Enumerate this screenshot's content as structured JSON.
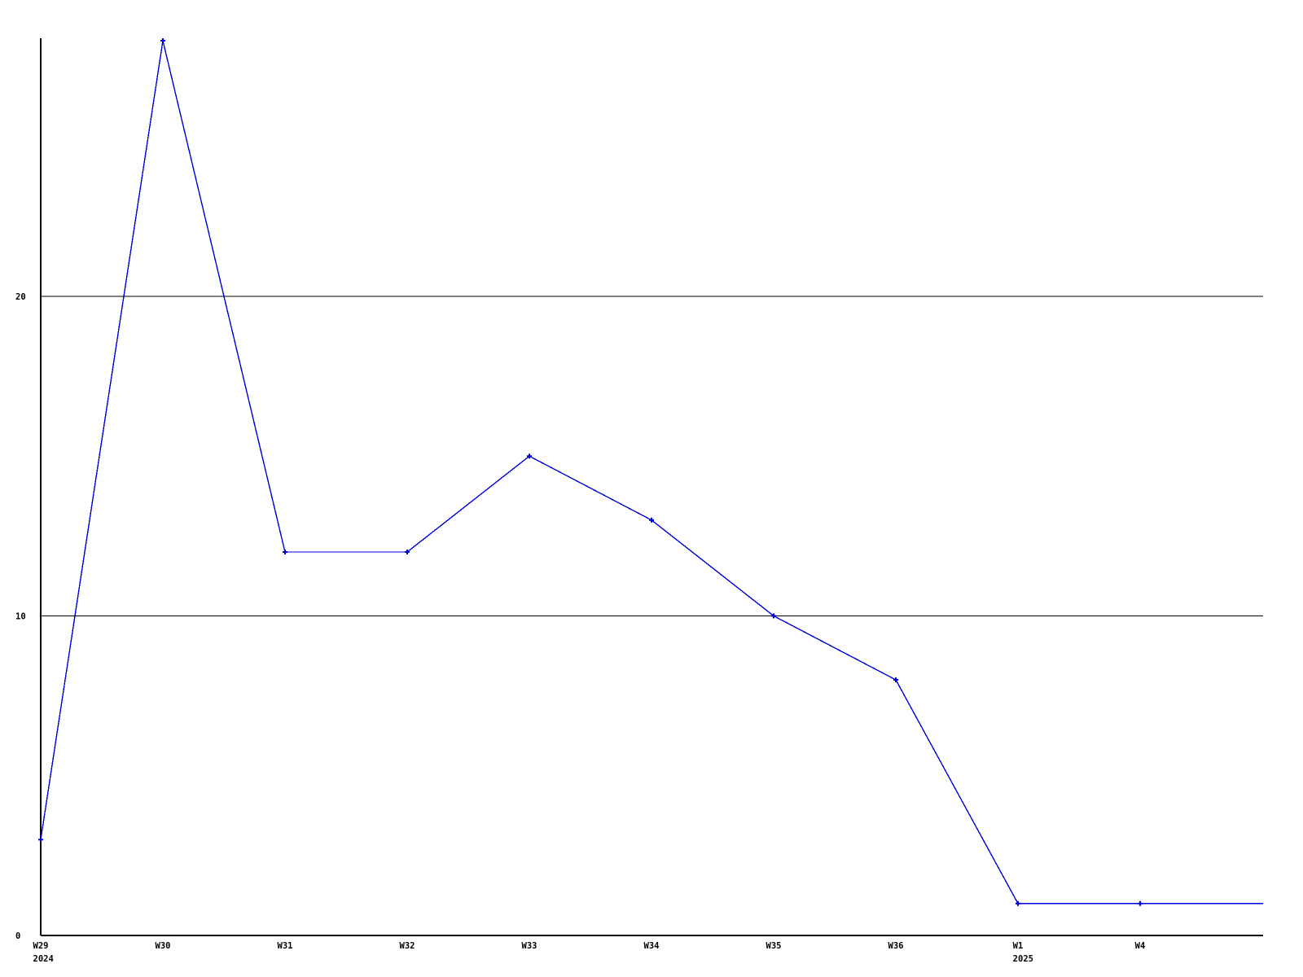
{
  "chart_data": {
    "type": "line",
    "title": "",
    "xlabel": "",
    "ylabel": "",
    "categories": [
      "W29",
      "W30",
      "W31",
      "W32",
      "W33",
      "W34",
      "W35",
      "W36",
      "W1",
      "W4"
    ],
    "category_year_labels": [
      {
        "category_index": 0,
        "label": "2024"
      },
      {
        "category_index": 8,
        "label": "2025"
      }
    ],
    "values": [
      3,
      28,
      12,
      12,
      15,
      13,
      10,
      8,
      1,
      1
    ],
    "line_extends_to_right_edge_at_value": 1,
    "yticks": [
      0,
      10,
      20
    ],
    "ylim": [
      0,
      28.1
    ],
    "grid": "horizontal-only",
    "legend": "none",
    "marker": "plus",
    "colors": {
      "line": "#0000dd",
      "axis": "#000000",
      "grid": "#000000",
      "text": "#000000",
      "background": "#ffffff"
    }
  }
}
